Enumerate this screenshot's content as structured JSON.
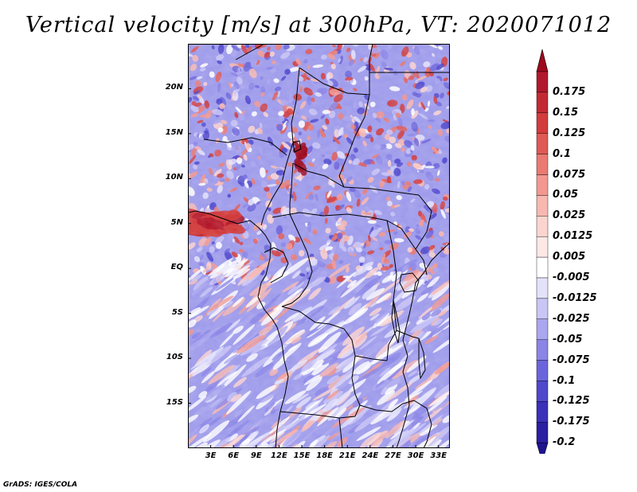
{
  "title": "Vertical velocity [m/s] at 300hPa, VT: 2020071012",
  "credit": "GrADS: IGES/COLA",
  "map": {
    "lon_range": [
      0,
      34.5
    ],
    "lat_range": [
      -20,
      25
    ],
    "lat_ticks": [
      {
        "value": 20,
        "label": "20N"
      },
      {
        "value": 15,
        "label": "15N"
      },
      {
        "value": 10,
        "label": "10N"
      },
      {
        "value": 5,
        "label": "5N"
      },
      {
        "value": 0,
        "label": "EQ"
      },
      {
        "value": -5,
        "label": "5S"
      },
      {
        "value": -10,
        "label": "10S"
      },
      {
        "value": -15,
        "label": "15S"
      }
    ],
    "lon_ticks": [
      {
        "value": 3,
        "label": "3E"
      },
      {
        "value": 6,
        "label": "6E"
      },
      {
        "value": 9,
        "label": "9E"
      },
      {
        "value": 12,
        "label": "12E"
      },
      {
        "value": 15,
        "label": "15E"
      },
      {
        "value": 18,
        "label": "18E"
      },
      {
        "value": 21,
        "label": "21E"
      },
      {
        "value": 24,
        "label": "24E"
      },
      {
        "value": 27,
        "label": "27E"
      },
      {
        "value": 30,
        "label": "30E"
      },
      {
        "value": 33,
        "label": "33E"
      }
    ]
  },
  "colorbar": {
    "levels": [
      {
        "label": "0.175",
        "color": "#b2182b"
      },
      {
        "label": "0.15",
        "color": "#c22a33"
      },
      {
        "label": "0.125",
        "color": "#d23c3c"
      },
      {
        "label": "0.1",
        "color": "#e05a55"
      },
      {
        "label": "0.075",
        "color": "#ea7a72"
      },
      {
        "label": "0.05",
        "color": "#f29890"
      },
      {
        "label": "0.025",
        "color": "#f8b8b0"
      },
      {
        "label": "0.0125",
        "color": "#fcd4cf"
      },
      {
        "label": "0.005",
        "color": "#fee8e6"
      },
      {
        "label": "-0.005",
        "color": "#ffffff"
      },
      {
        "label": "-0.0125",
        "color": "#e4e2fb"
      },
      {
        "label": "-0.025",
        "color": "#c9c6f6"
      },
      {
        "label": "-0.05",
        "color": "#aaa6ef"
      },
      {
        "label": "-0.075",
        "color": "#8a85e6"
      },
      {
        "label": "-0.1",
        "color": "#6b65db"
      },
      {
        "label": "-0.125",
        "color": "#4f48cc"
      },
      {
        "label": "-0.175",
        "color": "#3a31b8"
      },
      {
        "label": "-0.2",
        "color": "#2a1fa0"
      }
    ],
    "top_color": "#9e0a1e",
    "bottom_color": "#1f1490"
  },
  "colors": {
    "ocean_base": "#9f9ceb",
    "land_base": "#8d89e6",
    "border": "#000000",
    "contour": "#ffffff"
  }
}
